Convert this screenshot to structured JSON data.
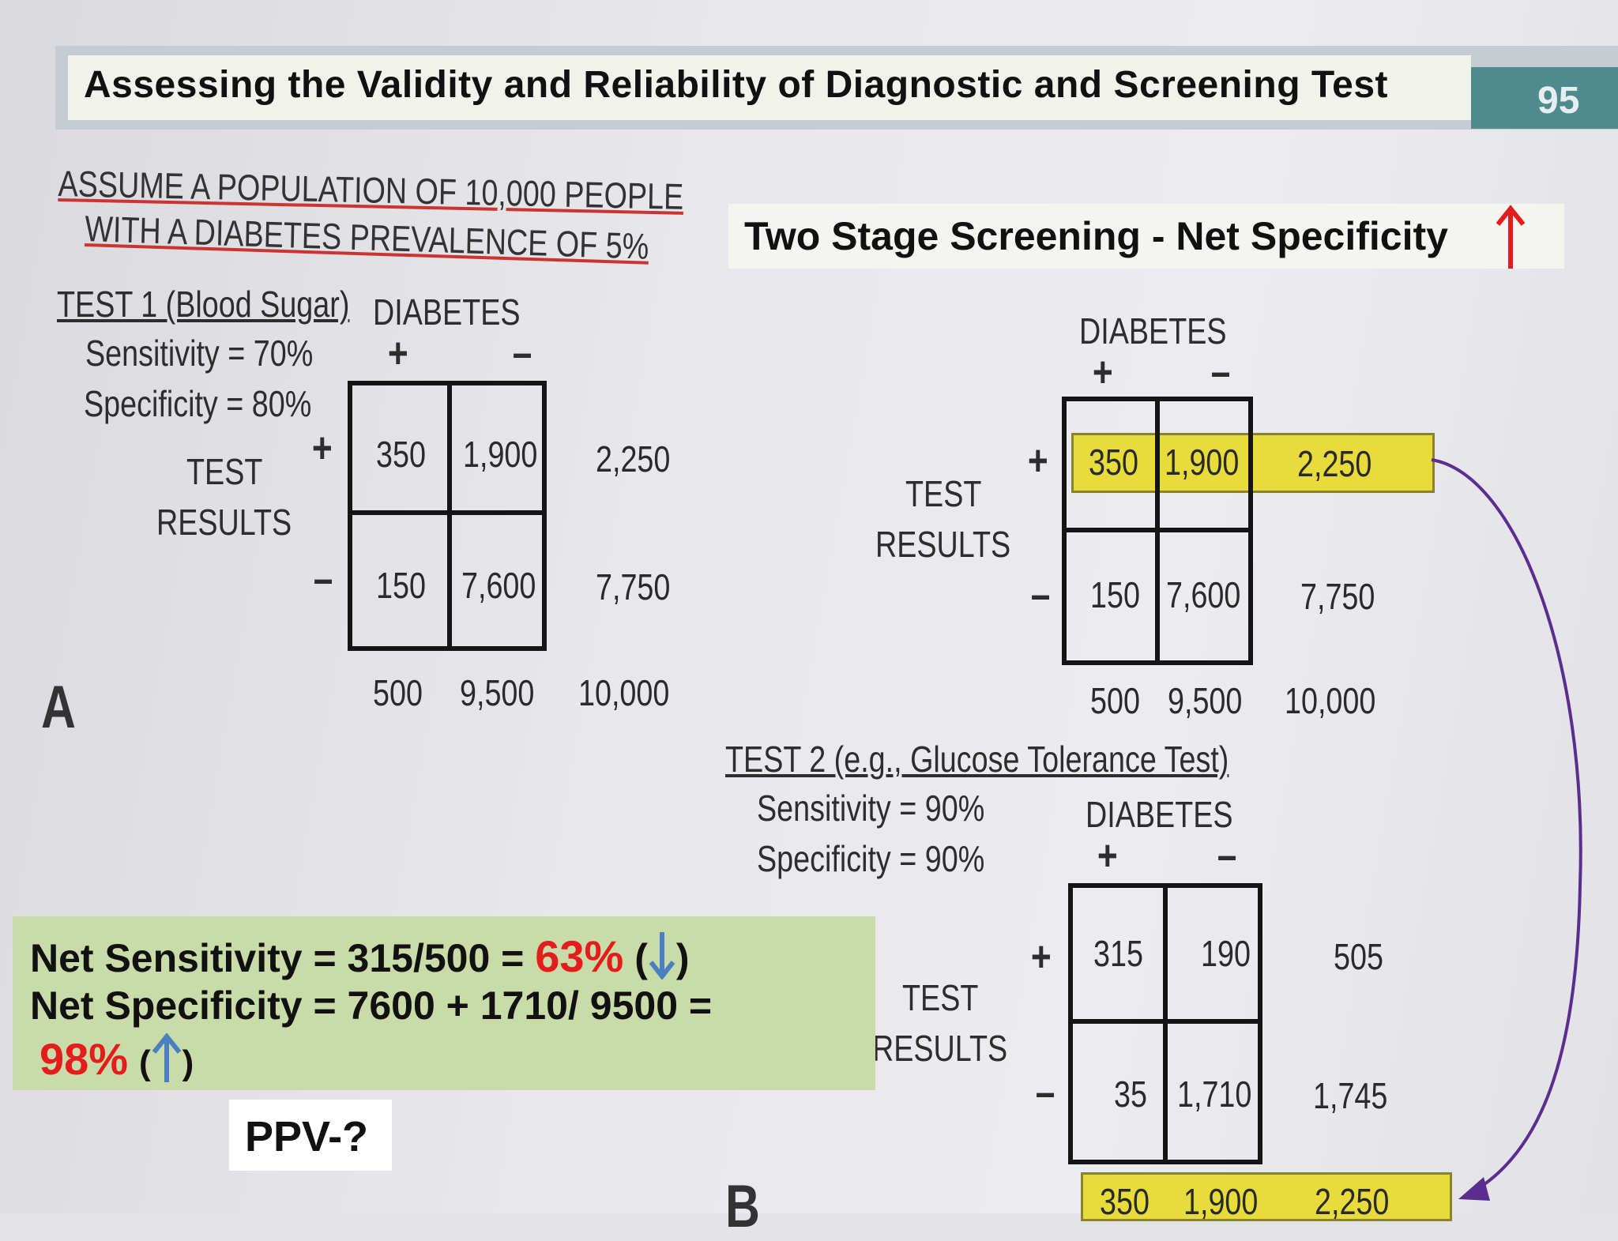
{
  "header": {
    "title": "Assessing the Validity and Reliability of  Diagnostic and Screening Test",
    "page_number": "95"
  },
  "subtitle": {
    "text": "Two Stage Screening -   Net Specificity",
    "arrow_icon": "red-up-arrow-icon",
    "arrow_color": "#e41c1c"
  },
  "assumption": {
    "line1": "ASSUME A POPULATION OF 10,000 PEOPLE",
    "line2": "WITH A DIABETES PREVALENCE OF 5%"
  },
  "test1": {
    "label": "TEST 1 (Blood Sugar)",
    "sensitivity": "Sensitivity = 70%",
    "specificity": "Specificity = 80%",
    "column_header": "DIABETES",
    "col_plus": "+",
    "col_minus": "–",
    "row_label_1": "TEST",
    "row_label_2": "RESULTS",
    "row_plus": "+",
    "row_minus": "–",
    "cells": [
      "350",
      "1,900",
      "150",
      "7,600"
    ],
    "row_totals": [
      "2,250",
      "7,750"
    ],
    "col_totals": [
      "500",
      "9,500",
      "10,000"
    ],
    "panel_letter": "A"
  },
  "stage2_top": {
    "column_header": "DIABETES",
    "col_plus": "+",
    "col_minus": "–",
    "row_label_1": "TEST",
    "row_label_2": "RESULTS",
    "row_plus": "+",
    "row_minus": "–",
    "cells": [
      "350",
      "1,900",
      "150",
      "7,600"
    ],
    "row_totals": [
      "2,250",
      "7,750"
    ],
    "col_totals": [
      "500",
      "9,500",
      "10,000"
    ],
    "highlight_color": "#e7dc3c"
  },
  "test2": {
    "label": "TEST 2 (e.g., Glucose Tolerance Test)",
    "sensitivity": "Sensitivity = 90%",
    "specificity": "Specificity = 90%",
    "column_header": "DIABETES",
    "col_plus": "+",
    "col_minus": "–",
    "row_label_1": "TEST",
    "row_label_2": "RESULTS",
    "row_plus": "+",
    "row_minus": "–",
    "cells": [
      "315",
      "190",
      "35",
      "1,710"
    ],
    "row_totals": [
      "505",
      "1,745"
    ],
    "bottom_row": [
      "350",
      "1,900",
      "2,250"
    ],
    "panel_letter": "B"
  },
  "summary": {
    "net_sens_prefix": "Net Sensitivity = 315/500 = ",
    "net_sens_value": "63%",
    "paren_open": "(",
    "paren_close": ")",
    "net_spec_line": "Net Specificity = 7600 + 1710/ 9500 =",
    "net_spec_value": "98%",
    "down_arrow_icon": "blue-down-arrow-icon",
    "up_arrow_icon": "blue-up-arrow-icon",
    "arrow_color": "#4a7fc1",
    "box_color": "#c8dba8"
  },
  "ppv": {
    "text": "PPV-?"
  },
  "connector": {
    "icon": "purple-curved-arrow-icon",
    "color": "#5b2d8e"
  }
}
